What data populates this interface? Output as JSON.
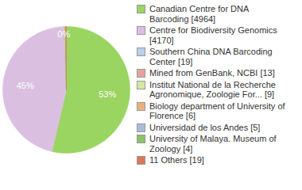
{
  "chart_data": {
    "type": "pie",
    "categories": [
      "Canadian Centre for DNA Barcoding [4964]",
      "Centre for Biodiversity Genomics [4170]",
      "Southern China DNA Barcoding Center [19]",
      "Mined from GenBank, NCBI [13]",
      "Institut National de la Recherche Agronomique, Zoologie For... [9]",
      "Biology department of University of Florence [6]",
      "Universidad de los Andes [5]",
      "University of Malaya. Museum of Zoology [4]",
      "11 Others [19]"
    ],
    "values": [
      53,
      45,
      0.21,
      0.14,
      0.1,
      0.07,
      0.05,
      0.04,
      0.21
    ],
    "value_labels": [
      "53%",
      "45%",
      "0%",
      null,
      null,
      null,
      null,
      null,
      null
    ],
    "colors": [
      "#9ad461",
      "#dbbfe0",
      "#b8d0e8",
      "#e3a39f",
      "#d4e6a0",
      "#eeb07a",
      "#a9bcd9",
      "#8cc266",
      "#d9785a"
    ],
    "legend": "right"
  }
}
